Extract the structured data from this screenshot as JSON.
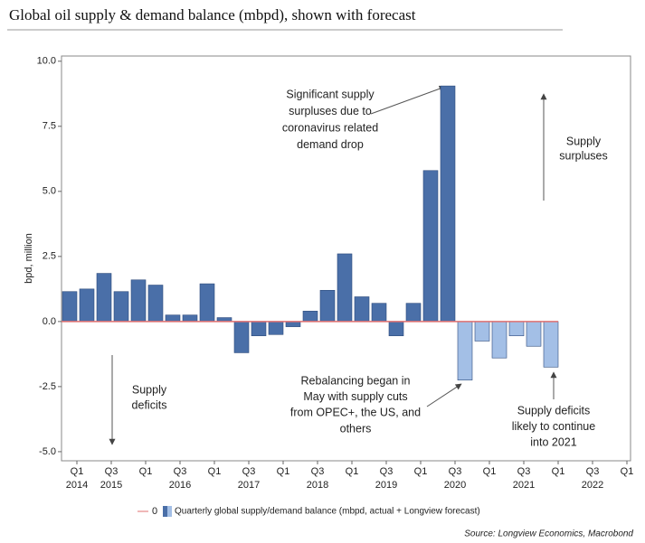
{
  "chart_data": {
    "type": "bar",
    "title": "Global oil supply & demand balance (mbpd), shown with forecast",
    "ylabel": "bpd, million",
    "values": [
      1.15,
      1.25,
      1.85,
      1.15,
      1.6,
      1.4,
      0.25,
      0.25,
      1.45,
      0.15,
      -1.2,
      -0.55,
      -0.5,
      -0.2,
      0.4,
      1.2,
      2.6,
      0.95,
      0.7,
      -0.55,
      0.7,
      5.8,
      9.05,
      -2.25,
      -0.75,
      -1.4,
      -0.55,
      -0.95,
      -1.75
    ],
    "colors": [
      "#4a6fa8",
      "#4a6fa8",
      "#4a6fa8",
      "#4a6fa8",
      "#4a6fa8",
      "#4a6fa8",
      "#4a6fa8",
      "#4a6fa8",
      "#4a6fa8",
      "#4a6fa8",
      "#4a6fa8",
      "#4a6fa8",
      "#4a6fa8",
      "#4a6fa8",
      "#4a6fa8",
      "#4a6fa8",
      "#4a6fa8",
      "#4a6fa8",
      "#4a6fa8",
      "#4a6fa8",
      "#4a6fa8",
      "#4a6fa8",
      "#4a6fa8",
      "#a3bfe6",
      "#a3bfe6",
      "#a3bfe6",
      "#a3bfe6",
      "#a3bfe6",
      "#a3bfe6"
    ],
    "xtick_labels": [
      "Q1",
      "Q3",
      "Q1",
      "Q3",
      "Q1",
      "Q3",
      "Q1",
      "Q3",
      "Q1",
      "Q3",
      "Q1",
      "Q3",
      "Q1",
      "Q3",
      "Q1",
      "Q3",
      "Q1"
    ],
    "xtick_years": [
      "2014",
      "2015",
      null,
      "2016",
      null,
      "2017",
      null,
      "2018",
      null,
      "2019",
      null,
      "2020",
      null,
      "2021",
      null,
      "2022",
      null
    ],
    "ylim": [
      -5.35,
      10.2
    ],
    "yticks": [
      {
        "value": 10,
        "label": "10.0"
      },
      {
        "value": 7.5,
        "label": "7.5"
      },
      {
        "value": 5,
        "label": "5.0"
      },
      {
        "value": 2.5,
        "label": "2.5"
      },
      {
        "value": 0,
        "label": "0.0"
      },
      {
        "value": -2.5,
        "label": "-2.5"
      },
      {
        "value": -5,
        "label": "-5.0"
      }
    ],
    "zero_line_color": "#e07070",
    "legend": {
      "zero_label": "0",
      "label": "Quarterly global supply/demand balance (mbpd, actual + Longview forecast)"
    },
    "annotations": [
      {
        "lines": [
          "Significant supply",
          "surpluses due to",
          "coronavirus related",
          "demand drop"
        ]
      },
      {
        "lines": [
          "Supply",
          "surpluses"
        ]
      },
      {
        "lines": [
          "Supply",
          "deficits"
        ]
      },
      {
        "lines": [
          "Rebalancing began in",
          "May with supply cuts",
          "from OPEC+, the US, and",
          "others"
        ]
      },
      {
        "lines": [
          "Supply deficits",
          "likely to continue",
          "into 2021"
        ]
      }
    ],
    "source": "Source: Longview Economics, Macrobond"
  }
}
